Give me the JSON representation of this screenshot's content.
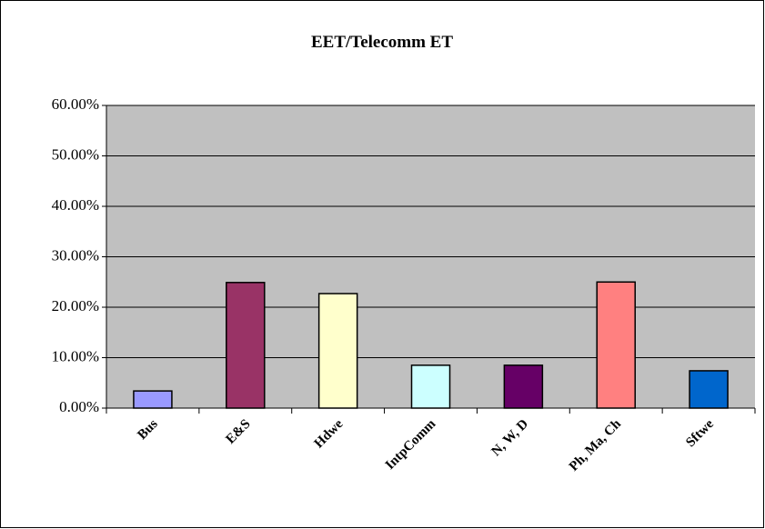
{
  "chart_data": {
    "type": "bar",
    "title": "EET/Telecomm ET",
    "categories": [
      "Bus",
      "E&S",
      "Hdwe",
      "IntpComm",
      "N, W, D",
      "Ph, Ma, Ch",
      "Sftwe"
    ],
    "values": [
      3.4,
      24.9,
      22.7,
      8.5,
      8.5,
      25.0,
      7.4
    ],
    "colors": [
      "#9999ff",
      "#993366",
      "#ffffcc",
      "#ccffff",
      "#660066",
      "#ff8080",
      "#0066cc"
    ],
    "ylim": [
      0,
      60
    ],
    "yticks": [
      {
        "value": 0,
        "label": "0.00%"
      },
      {
        "value": 10,
        "label": "10.00%"
      },
      {
        "value": 20,
        "label": "20.00%"
      },
      {
        "value": 30,
        "label": "30.00%"
      },
      {
        "value": 40,
        "label": "40.00%"
      },
      {
        "value": 50,
        "label": "50.00%"
      },
      {
        "value": 60,
        "label": "60.00%"
      }
    ],
    "grid": true
  }
}
